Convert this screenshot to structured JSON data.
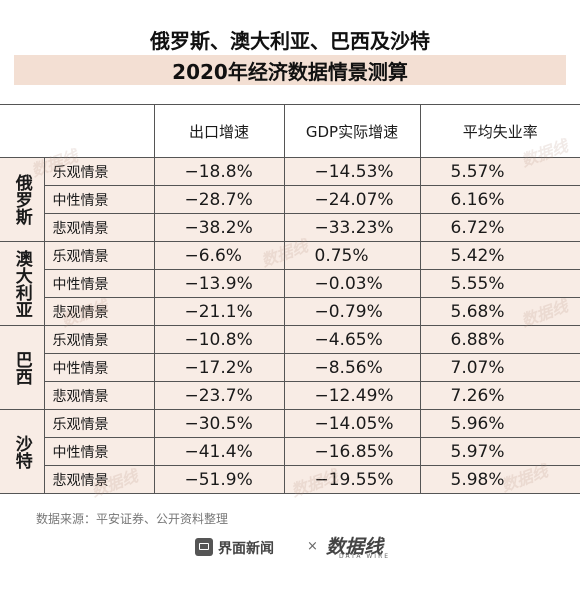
{
  "title": {
    "line1": "俄罗斯、澳大利亚、巴西及沙特",
    "line2": "2020年经济数据情景测算"
  },
  "headers": [
    "出口增速",
    "GDP实际增速",
    "平均失业率"
  ],
  "groups": [
    {
      "country": "俄罗斯",
      "rows": [
        {
          "scenario": "乐观情景",
          "export": "−18.8%",
          "gdp": "−14.53%",
          "unemp": "5.57%"
        },
        {
          "scenario": "中性情景",
          "export": "−28.7%",
          "gdp": "−24.07%",
          "unemp": "6.16%"
        },
        {
          "scenario": "悲观情景",
          "export": "−38.2%",
          "gdp": "−33.23%",
          "unemp": "6.72%"
        }
      ]
    },
    {
      "country": "澳大利亚",
      "rows": [
        {
          "scenario": "乐观情景",
          "export": "−6.6%",
          "gdp": "0.75%",
          "unemp": "5.42%"
        },
        {
          "scenario": "中性情景",
          "export": "−13.9%",
          "gdp": "−0.03%",
          "unemp": "5.55%"
        },
        {
          "scenario": "悲观情景",
          "export": "−21.1%",
          "gdp": "−0.79%",
          "unemp": "5.68%"
        }
      ]
    },
    {
      "country": "巴西",
      "rows": [
        {
          "scenario": "乐观情景",
          "export": "−10.8%",
          "gdp": "−4.65%",
          "unemp": "6.88%"
        },
        {
          "scenario": "中性情景",
          "export": "−17.2%",
          "gdp": "−8.56%",
          "unemp": "7.07%"
        },
        {
          "scenario": "悲观情景",
          "export": "−23.7%",
          "gdp": "−12.49%",
          "unemp": "7.26%"
        }
      ]
    },
    {
      "country": "沙特",
      "rows": [
        {
          "scenario": "乐观情景",
          "export": "−30.5%",
          "gdp": "−14.05%",
          "unemp": "5.96%"
        },
        {
          "scenario": "中性情景",
          "export": "−41.4%",
          "gdp": "−16.85%",
          "unemp": "5.97%"
        },
        {
          "scenario": "悲观情景",
          "export": "−51.9%",
          "gdp": "−19.55%",
          "unemp": "5.98%"
        }
      ]
    }
  ],
  "source": "数据来源：平安证券、公开资料整理",
  "footer": {
    "brand": "界面新闻",
    "separator": "×",
    "partner": "数据线",
    "partner_sub": "DATA WIRE",
    "brand_icon": "jiemian-logo-icon"
  },
  "colors": {
    "title_band": "#f3dfd3",
    "cell_fill": "#f8ece5"
  }
}
